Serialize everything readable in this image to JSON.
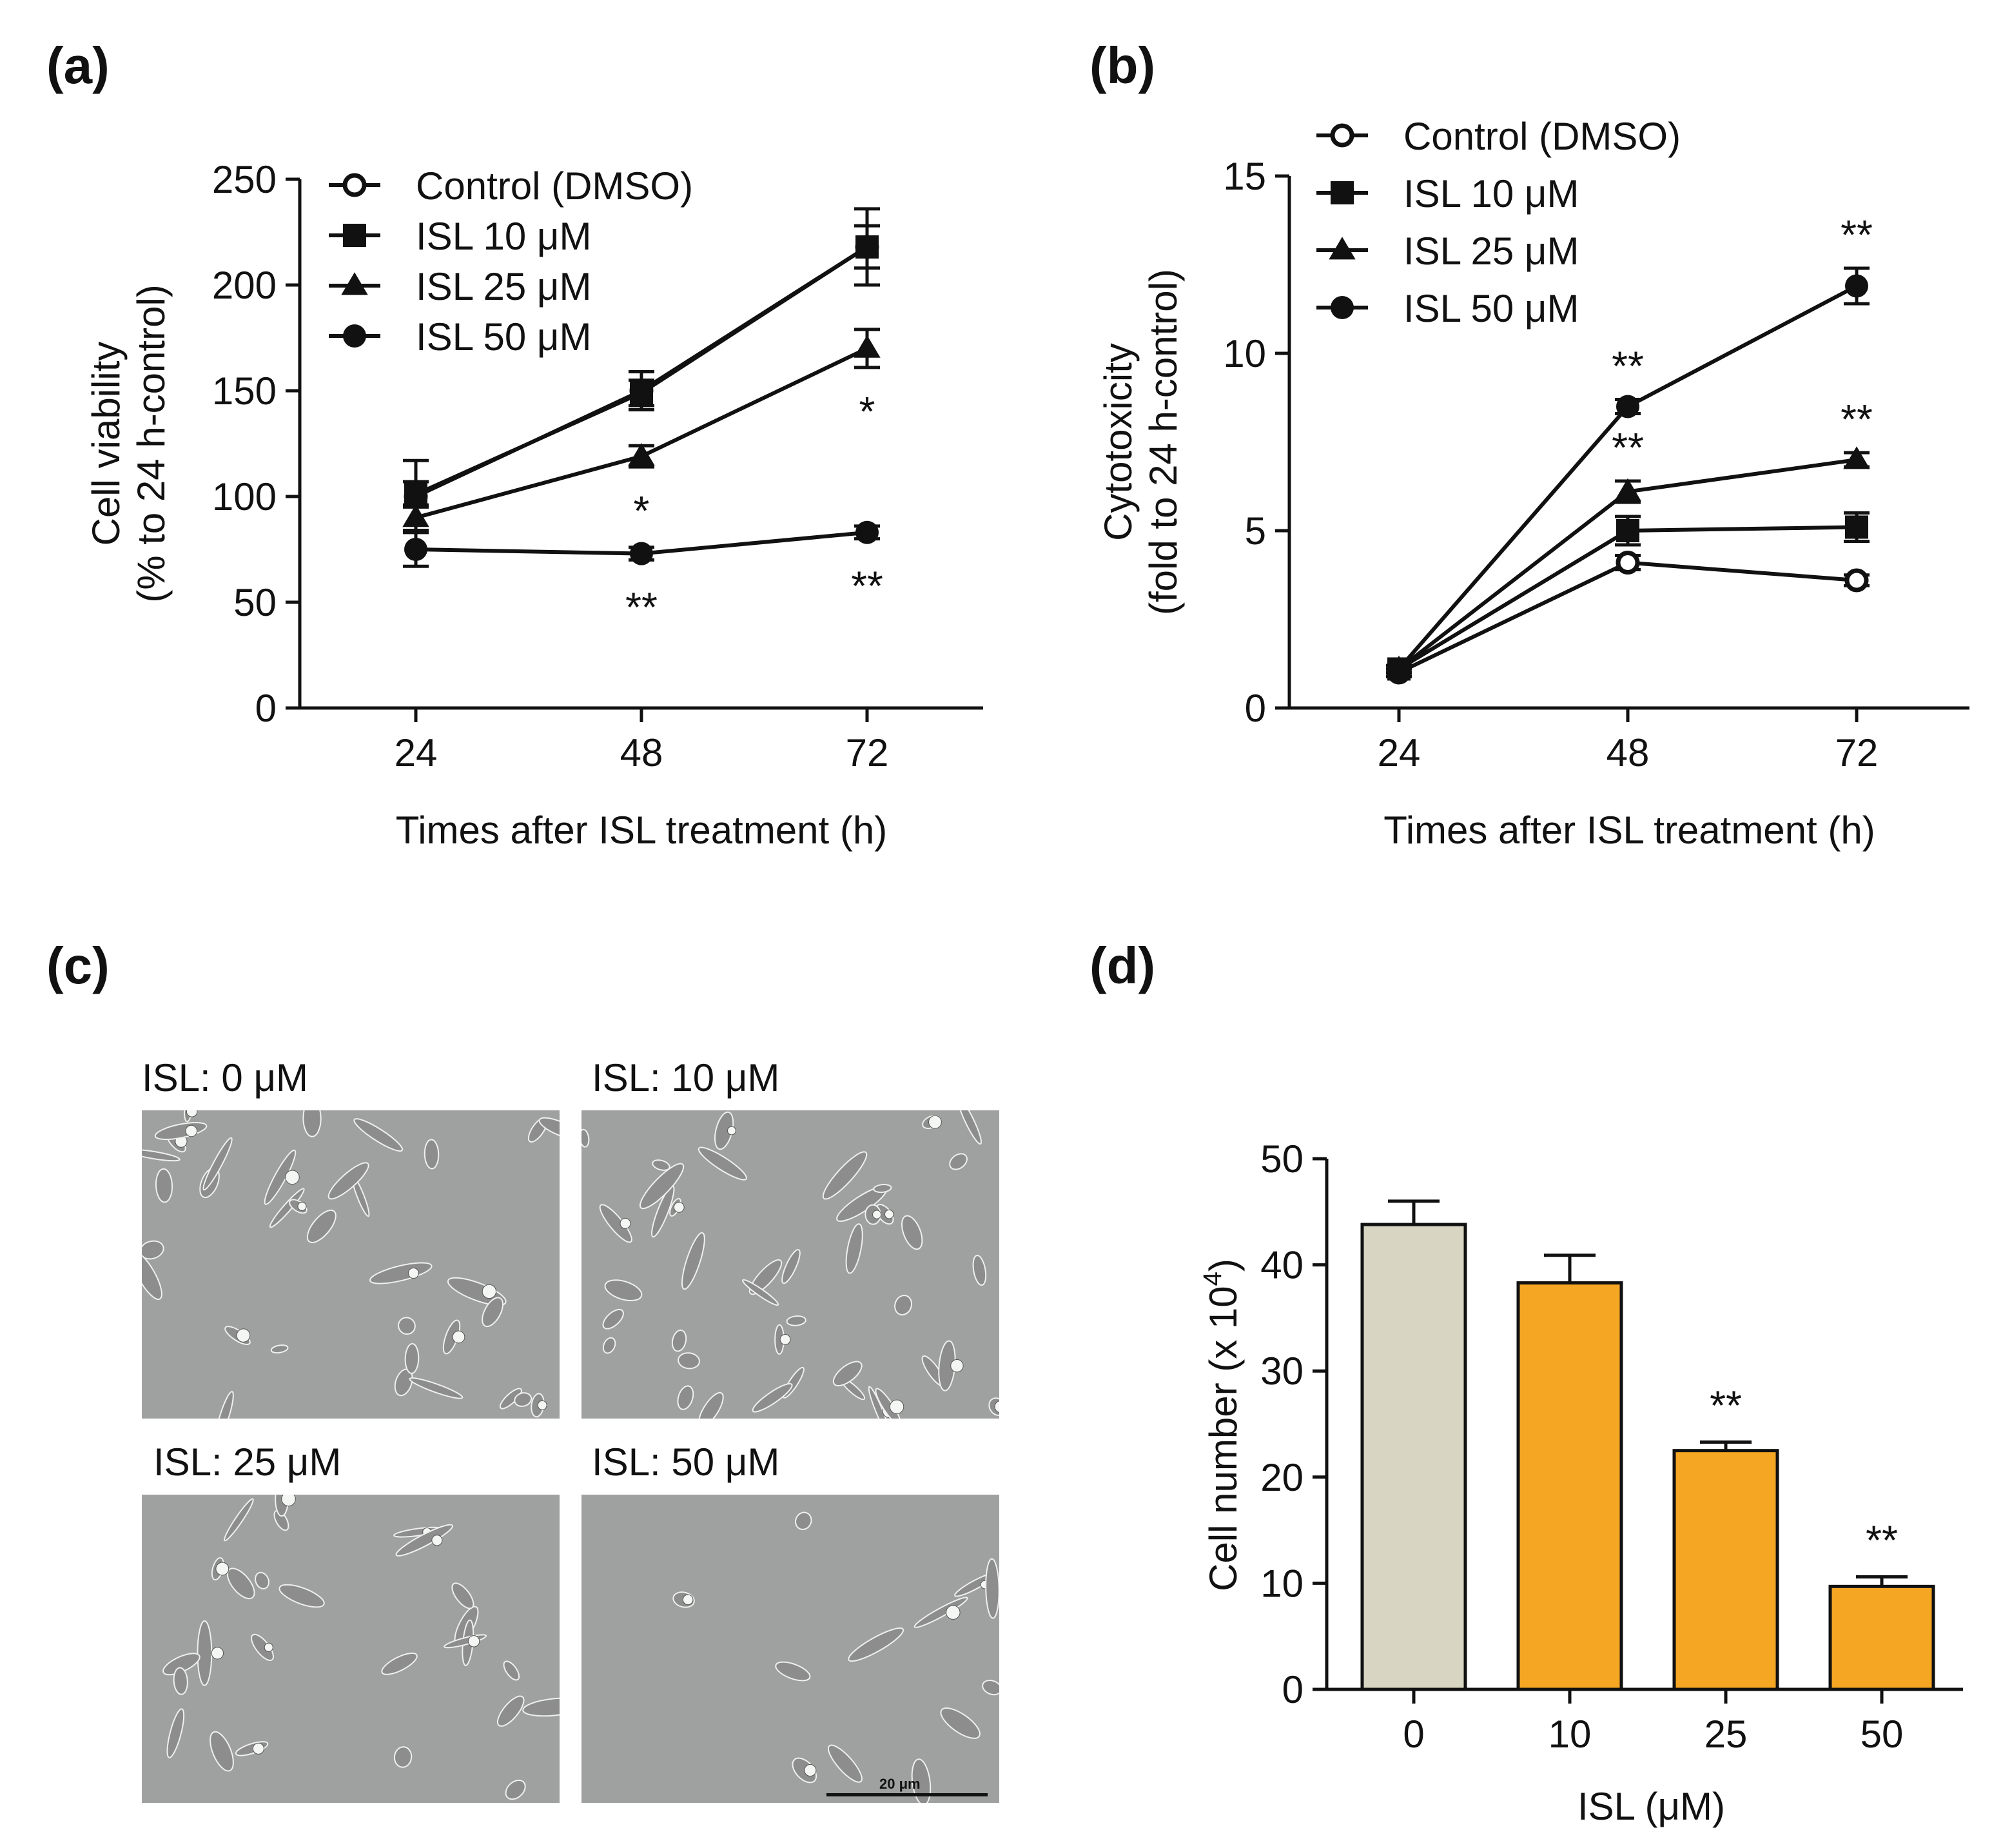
{
  "panels": {
    "a": "(a)",
    "b": "(b)",
    "c": "(c)",
    "d": "(d)"
  },
  "micrographs": {
    "titles": [
      "ISL: 0 μM",
      "ISL: 10 μM",
      "ISL: 25 μM",
      "ISL: 50 μM"
    ],
    "scale_bar_label": "20 μm"
  },
  "colors": {
    "axis": "#111111",
    "control_bar": "#d8d6c3",
    "isl_bar": "#f5a623",
    "micrograph_bg": "#9fa0a0"
  },
  "chart_data": [
    {
      "id": "a",
      "type": "line",
      "title": "",
      "xlabel": "Times after ISL treatment (h)",
      "ylabel_lines": [
        "Cell viability",
        "(% to 24 h-control)"
      ],
      "categories": [
        "24",
        "48",
        "72"
      ],
      "ylim": [
        0,
        250
      ],
      "yticks": [
        0,
        50,
        100,
        150,
        200,
        250
      ],
      "legend_position": "top-left",
      "series": [
        {
          "name": "Control (DMSO)",
          "marker": "open-circle",
          "values": [
            100,
            150,
            218
          ],
          "errors": [
            17,
            9,
            18
          ],
          "stars": [
            "",
            "",
            ""
          ]
        },
        {
          "name": "ISL 10 μM",
          "marker": "square",
          "values": [
            101,
            149,
            218
          ],
          "errors": [
            6,
            6,
            10
          ],
          "stars": [
            "",
            "",
            ""
          ]
        },
        {
          "name": "ISL 25 μM",
          "marker": "triangle",
          "values": [
            90,
            119,
            170
          ],
          "errors": [
            6,
            5,
            9
          ],
          "stars": [
            "",
            "*",
            "*"
          ]
        },
        {
          "name": "ISL 50 μM",
          "marker": "filled-circle",
          "values": [
            75,
            73,
            83
          ],
          "errors": [
            8,
            3,
            3
          ],
          "stars": [
            "",
            "**",
            "**"
          ]
        }
      ]
    },
    {
      "id": "b",
      "type": "line",
      "title": "",
      "xlabel": "Times after ISL treatment (h)",
      "ylabel_lines": [
        "Cytotoxicity",
        "(fold to 24 h-control)"
      ],
      "categories": [
        "24",
        "48",
        "72"
      ],
      "ylim": [
        0,
        15
      ],
      "yticks": [
        0,
        5,
        10,
        15
      ],
      "legend_position": "top-left",
      "series": [
        {
          "name": "Control (DMSO)",
          "marker": "open-circle",
          "values": [
            1.0,
            4.1,
            3.6
          ],
          "errors": [
            0.1,
            0.2,
            0.15
          ],
          "stars": [
            "",
            "",
            ""
          ]
        },
        {
          "name": "ISL 10 μM",
          "marker": "square",
          "values": [
            1.1,
            5.0,
            5.1
          ],
          "errors": [
            0.1,
            0.4,
            0.4
          ],
          "stars": [
            "",
            "",
            ""
          ]
        },
        {
          "name": "ISL 25 μM",
          "marker": "triangle",
          "values": [
            1.1,
            6.1,
            7.0
          ],
          "errors": [
            0.1,
            0.3,
            0.2
          ],
          "stars": [
            "",
            "**",
            "**"
          ]
        },
        {
          "name": "ISL 50 μM",
          "marker": "filled-circle",
          "values": [
            1.1,
            8.5,
            11.9
          ],
          "errors": [
            0.1,
            0.2,
            0.5
          ],
          "stars": [
            "",
            "**",
            "**"
          ]
        }
      ]
    },
    {
      "id": "d",
      "type": "bar",
      "title": "",
      "xlabel": "ISL (μM)",
      "ylabel": "Cell number (x 10",
      "ylabel_sup": "4",
      "ylabel_end": ")",
      "categories": [
        "0",
        "10",
        "25",
        "50"
      ],
      "values": [
        43.8,
        38.3,
        22.5,
        9.7
      ],
      "errors": [
        2.2,
        2.6,
        0.8,
        0.9
      ],
      "stars": [
        "",
        "",
        "**",
        "**"
      ],
      "ylim": [
        0,
        50
      ],
      "yticks": [
        0,
        10,
        20,
        30,
        40,
        50
      ]
    }
  ]
}
